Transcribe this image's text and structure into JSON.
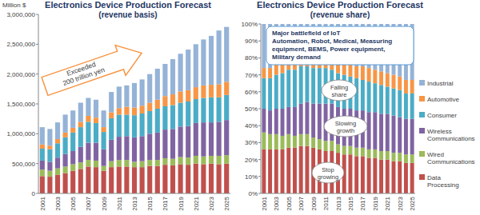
{
  "chart_data": [
    {
      "type": "bar",
      "stacked": true,
      "title": "Electronics Device Production Forecast",
      "subtitle": "(revenue basis)",
      "y_label": "Million $",
      "annotations": [
        "Exceeded\n200 trillion yen"
      ],
      "categories": [
        "2001",
        null,
        "2003",
        null,
        "2005",
        null,
        "2007",
        null,
        "2009",
        null,
        "2011",
        null,
        "2013",
        null,
        "2015",
        null,
        "2017",
        null,
        "2019",
        null,
        "2021",
        null,
        "2023",
        null,
        "2025"
      ],
      "ylim": [
        0,
        3000000
      ],
      "yticks": [
        0,
        {
          "value": 500000,
          "label": "500,000"
        },
        {
          "value": 1000000,
          "label": "1,000,000"
        },
        {
          "value": 1500000,
          "label": "1,500,000"
        },
        {
          "value": 2000000,
          "label": "2,000,000"
        },
        {
          "value": 2500000,
          "label": "2,500,000"
        },
        {
          "value": 3000000,
          "label": "3,000,000"
        }
      ],
      "grid": false,
      "series": [
        {
          "color": "#c0504d",
          "values": [
            290000,
            280000,
            310000,
            340000,
            380000,
            410000,
            450000,
            440000,
            380000,
            440000,
            450000,
            450000,
            440000,
            440000,
            460000,
            460000,
            480000,
            470000,
            490000,
            480000,
            500000,
            490000,
            500000,
            490000,
            500000
          ]
        },
        {
          "color": "#9bbb59",
          "values": [
            110000,
            100000,
            110000,
            110000,
            110000,
            110000,
            110000,
            110000,
            80000,
            100000,
            110000,
            110000,
            90000,
            100000,
            100000,
            100000,
            110000,
            110000,
            120000,
            120000,
            130000,
            130000,
            130000,
            140000,
            140000
          ]
        },
        {
          "color": "#8064a2",
          "values": [
            150000,
            150000,
            180000,
            210000,
            220000,
            260000,
            290000,
            300000,
            280000,
            360000,
            390000,
            400000,
            410000,
            420000,
            440000,
            460000,
            480000,
            500000,
            510000,
            530000,
            550000,
            570000,
            560000,
            570000,
            590000
          ]
        },
        {
          "color": "#4bacc6",
          "values": [
            200000,
            210000,
            240000,
            280000,
            310000,
            330000,
            350000,
            330000,
            290000,
            360000,
            370000,
            360000,
            370000,
            380000,
            380000,
            400000,
            390000,
            400000,
            400000,
            410000,
            400000,
            410000,
            420000,
            410000,
            420000
          ]
        },
        {
          "color": "#f79646",
          "values": [
            70000,
            60000,
            70000,
            80000,
            80000,
            90000,
            100000,
            90000,
            80000,
            100000,
            110000,
            130000,
            130000,
            130000,
            140000,
            150000,
            170000,
            180000,
            190000,
            190000,
            200000,
            210000,
            210000,
            220000,
            220000
          ]
        },
        {
          "color": "#95b3d7",
          "values": [
            290000,
            280000,
            280000,
            300000,
            290000,
            320000,
            300000,
            300000,
            280000,
            340000,
            360000,
            360000,
            410000,
            440000,
            480000,
            520000,
            540000,
            590000,
            630000,
            680000,
            720000,
            770000,
            820000,
            900000,
            920000
          ]
        }
      ]
    },
    {
      "type": "bar",
      "stacked": true,
      "title": "Electronics Device Production Forecast",
      "subtitle": "(revenue share)",
      "annotations": [
        "Major battlefield of IoT\nAutomation, Robot, Medical, Measuring equipment, BEMS, Power equipment, Military demand",
        "Falling share",
        "Slowing growth",
        "Stop growing"
      ],
      "categories": [
        "2001",
        null,
        "2003",
        null,
        "2005",
        null,
        "2007",
        null,
        "2009",
        null,
        "2011",
        null,
        "2013",
        null,
        "2015",
        null,
        "2017",
        null,
        "2019",
        null,
        "2021",
        null,
        "2023",
        null,
        "2025"
      ],
      "ylim": [
        0,
        100
      ],
      "yticks": [
        {
          "value": 0,
          "label": "0%"
        },
        {
          "value": 10,
          "label": "10%"
        },
        {
          "value": 20,
          "label": "20%"
        },
        {
          "value": 30,
          "label": "30%"
        },
        {
          "value": 40,
          "label": "40%"
        },
        {
          "value": 50,
          "label": "50%"
        },
        {
          "value": 60,
          "label": "60%"
        },
        {
          "value": 70,
          "label": "70%"
        },
        {
          "value": 80,
          "label": "80%"
        },
        {
          "value": 90,
          "label": "90%"
        },
        {
          "value": 100,
          "label": "100%"
        }
      ],
      "grid": false,
      "legend": "right",
      "series": [
        {
          "name": "Data Processing",
          "color": "#c0504d",
          "values": [
            26,
            26,
            26,
            26,
            27,
            27,
            28,
            28,
            27,
            26,
            25,
            25,
            24,
            23,
            23,
            22,
            22,
            21,
            21,
            20,
            20,
            19,
            19,
            18,
            18
          ]
        },
        {
          "name": "Wired Communications",
          "color": "#9bbb59",
          "values": [
            10,
            9,
            9,
            8,
            8,
            7,
            7,
            7,
            6,
            6,
            6,
            6,
            5,
            5,
            5,
            5,
            5,
            5,
            5,
            5,
            5,
            5,
            5,
            5,
            5
          ]
        },
        {
          "name": "Wireless Communications",
          "color": "#8064a2",
          "values": [
            14,
            14,
            15,
            16,
            16,
            17,
            18,
            19,
            20,
            21,
            22,
            22,
            22,
            22,
            22,
            22,
            22,
            22,
            22,
            22,
            22,
            22,
            21,
            21,
            21
          ]
        },
        {
          "name": "Consumer",
          "color": "#4bacc6",
          "values": [
            18,
            19,
            20,
            21,
            22,
            22,
            22,
            21,
            21,
            21,
            21,
            20,
            20,
            20,
            19,
            19,
            18,
            18,
            17,
            17,
            16,
            16,
            16,
            15,
            15
          ]
        },
        {
          "name": "Automotive",
          "color": "#f79646",
          "values": [
            6,
            6,
            6,
            6,
            6,
            6,
            6,
            6,
            6,
            6,
            6,
            7,
            7,
            7,
            7,
            7,
            8,
            8,
            8,
            8,
            8,
            8,
            8,
            8,
            8
          ]
        },
        {
          "name": "Industrial",
          "color": "#95b3d7",
          "values": [
            26,
            26,
            24,
            23,
            21,
            21,
            19,
            19,
            20,
            20,
            20,
            20,
            22,
            23,
            24,
            25,
            25,
            26,
            27,
            28,
            29,
            30,
            31,
            33,
            33
          ]
        }
      ]
    }
  ]
}
